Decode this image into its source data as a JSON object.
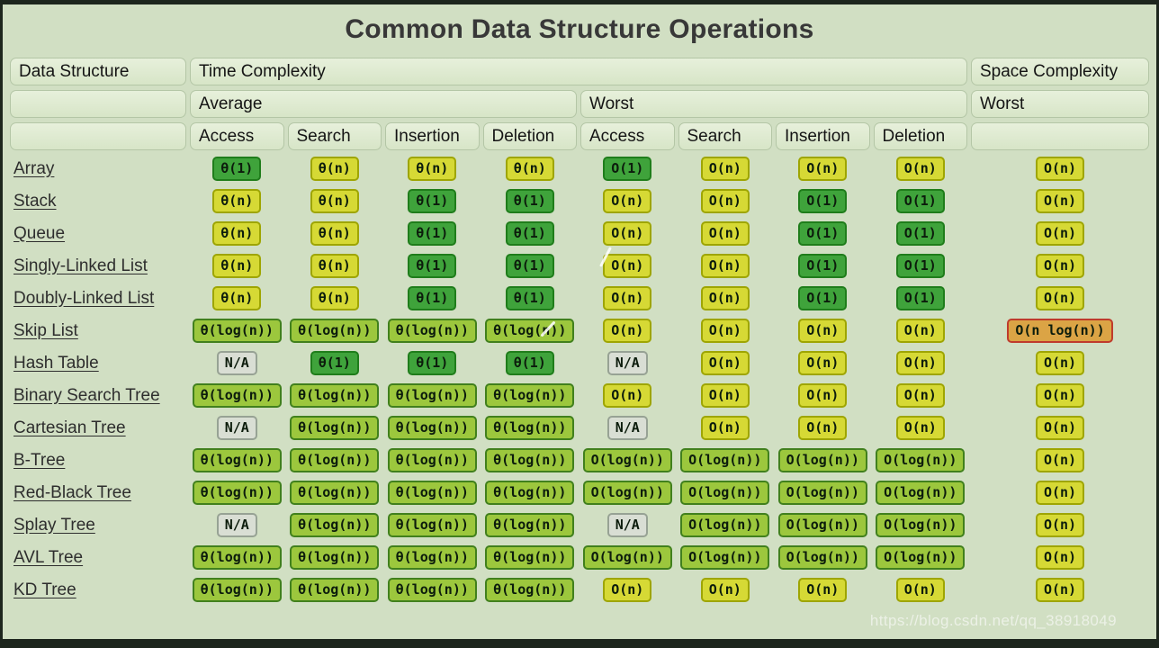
{
  "title": "Common Data Structure Operations",
  "watermark": "https://blog.csdn.net/qq_38918049",
  "header": {
    "data_structure": "Data Structure",
    "time_complexity": "Time Complexity",
    "space_complexity": "Space Complexity",
    "average": "Average",
    "worst_time": "Worst",
    "worst_space": "Worst",
    "operations": [
      "Access",
      "Search",
      "Insertion",
      "Deletion"
    ]
  },
  "colors": {
    "green": {
      "bg": "#3fa33b",
      "border": "#1f7d1b"
    },
    "yellow": {
      "bg": "#d6d935",
      "border": "#9ea502"
    },
    "yellowgreen": {
      "bg": "#9cc73d",
      "border": "#41801d"
    },
    "orange": {
      "bg": "#dba445",
      "border": "#bf3b2c"
    },
    "gray": {
      "bg": "#d9ded4",
      "border": "#97a294"
    }
  },
  "rows": [
    {
      "name": "Array",
      "cells": [
        {
          "text": "θ(1)",
          "color": "green"
        },
        {
          "text": "θ(n)",
          "color": "yellow"
        },
        {
          "text": "θ(n)",
          "color": "yellow"
        },
        {
          "text": "θ(n)",
          "color": "yellow"
        },
        {
          "text": "O(1)",
          "color": "green"
        },
        {
          "text": "O(n)",
          "color": "yellow"
        },
        {
          "text": "O(n)",
          "color": "yellow"
        },
        {
          "text": "O(n)",
          "color": "yellow"
        },
        {
          "text": "O(n)",
          "color": "yellow"
        }
      ]
    },
    {
      "name": "Stack",
      "cells": [
        {
          "text": "θ(n)",
          "color": "yellow"
        },
        {
          "text": "θ(n)",
          "color": "yellow"
        },
        {
          "text": "θ(1)",
          "color": "green"
        },
        {
          "text": "θ(1)",
          "color": "green"
        },
        {
          "text": "O(n)",
          "color": "yellow"
        },
        {
          "text": "O(n)",
          "color": "yellow"
        },
        {
          "text": "O(1)",
          "color": "green"
        },
        {
          "text": "O(1)",
          "color": "green"
        },
        {
          "text": "O(n)",
          "color": "yellow"
        }
      ]
    },
    {
      "name": "Queue",
      "cells": [
        {
          "text": "θ(n)",
          "color": "yellow"
        },
        {
          "text": "θ(n)",
          "color": "yellow"
        },
        {
          "text": "θ(1)",
          "color": "green"
        },
        {
          "text": "θ(1)",
          "color": "green"
        },
        {
          "text": "O(n)",
          "color": "yellow"
        },
        {
          "text": "O(n)",
          "color": "yellow"
        },
        {
          "text": "O(1)",
          "color": "green"
        },
        {
          "text": "O(1)",
          "color": "green"
        },
        {
          "text": "O(n)",
          "color": "yellow"
        }
      ]
    },
    {
      "name": "Singly-Linked List",
      "cells": [
        {
          "text": "θ(n)",
          "color": "yellow"
        },
        {
          "text": "θ(n)",
          "color": "yellow"
        },
        {
          "text": "θ(1)",
          "color": "green"
        },
        {
          "text": "θ(1)",
          "color": "green"
        },
        {
          "text": "O(n)",
          "color": "yellow"
        },
        {
          "text": "O(n)",
          "color": "yellow"
        },
        {
          "text": "O(1)",
          "color": "green"
        },
        {
          "text": "O(1)",
          "color": "green"
        },
        {
          "text": "O(n)",
          "color": "yellow"
        }
      ]
    },
    {
      "name": "Doubly-Linked List",
      "cells": [
        {
          "text": "θ(n)",
          "color": "yellow"
        },
        {
          "text": "θ(n)",
          "color": "yellow"
        },
        {
          "text": "θ(1)",
          "color": "green"
        },
        {
          "text": "θ(1)",
          "color": "green"
        },
        {
          "text": "O(n)",
          "color": "yellow"
        },
        {
          "text": "O(n)",
          "color": "yellow"
        },
        {
          "text": "O(1)",
          "color": "green"
        },
        {
          "text": "O(1)",
          "color": "green"
        },
        {
          "text": "O(n)",
          "color": "yellow"
        }
      ]
    },
    {
      "name": "Skip List",
      "cells": [
        {
          "text": "θ(log(n))",
          "color": "yellowgreen"
        },
        {
          "text": "θ(log(n))",
          "color": "yellowgreen"
        },
        {
          "text": "θ(log(n))",
          "color": "yellowgreen"
        },
        {
          "text": "θ(log(n))",
          "color": "yellowgreen"
        },
        {
          "text": "O(n)",
          "color": "yellow"
        },
        {
          "text": "O(n)",
          "color": "yellow"
        },
        {
          "text": "O(n)",
          "color": "yellow"
        },
        {
          "text": "O(n)",
          "color": "yellow"
        },
        {
          "text": "O(n log(n))",
          "color": "orange"
        }
      ]
    },
    {
      "name": "Hash Table",
      "cells": [
        {
          "text": "N/A",
          "color": "gray"
        },
        {
          "text": "θ(1)",
          "color": "green"
        },
        {
          "text": "θ(1)",
          "color": "green"
        },
        {
          "text": "θ(1)",
          "color": "green"
        },
        {
          "text": "N/A",
          "color": "gray"
        },
        {
          "text": "O(n)",
          "color": "yellow"
        },
        {
          "text": "O(n)",
          "color": "yellow"
        },
        {
          "text": "O(n)",
          "color": "yellow"
        },
        {
          "text": "O(n)",
          "color": "yellow"
        }
      ]
    },
    {
      "name": "Binary Search Tree",
      "cells": [
        {
          "text": "θ(log(n))",
          "color": "yellowgreen"
        },
        {
          "text": "θ(log(n))",
          "color": "yellowgreen"
        },
        {
          "text": "θ(log(n))",
          "color": "yellowgreen"
        },
        {
          "text": "θ(log(n))",
          "color": "yellowgreen"
        },
        {
          "text": "O(n)",
          "color": "yellow"
        },
        {
          "text": "O(n)",
          "color": "yellow"
        },
        {
          "text": "O(n)",
          "color": "yellow"
        },
        {
          "text": "O(n)",
          "color": "yellow"
        },
        {
          "text": "O(n)",
          "color": "yellow"
        }
      ]
    },
    {
      "name": "Cartesian Tree",
      "cells": [
        {
          "text": "N/A",
          "color": "gray"
        },
        {
          "text": "θ(log(n))",
          "color": "yellowgreen"
        },
        {
          "text": "θ(log(n))",
          "color": "yellowgreen"
        },
        {
          "text": "θ(log(n))",
          "color": "yellowgreen"
        },
        {
          "text": "N/A",
          "color": "gray"
        },
        {
          "text": "O(n)",
          "color": "yellow"
        },
        {
          "text": "O(n)",
          "color": "yellow"
        },
        {
          "text": "O(n)",
          "color": "yellow"
        },
        {
          "text": "O(n)",
          "color": "yellow"
        }
      ]
    },
    {
      "name": "B-Tree",
      "cells": [
        {
          "text": "θ(log(n))",
          "color": "yellowgreen"
        },
        {
          "text": "θ(log(n))",
          "color": "yellowgreen"
        },
        {
          "text": "θ(log(n))",
          "color": "yellowgreen"
        },
        {
          "text": "θ(log(n))",
          "color": "yellowgreen"
        },
        {
          "text": "O(log(n))",
          "color": "yellowgreen"
        },
        {
          "text": "O(log(n))",
          "color": "yellowgreen"
        },
        {
          "text": "O(log(n))",
          "color": "yellowgreen"
        },
        {
          "text": "O(log(n))",
          "color": "yellowgreen"
        },
        {
          "text": "O(n)",
          "color": "yellow"
        }
      ]
    },
    {
      "name": "Red-Black Tree",
      "cells": [
        {
          "text": "θ(log(n))",
          "color": "yellowgreen"
        },
        {
          "text": "θ(log(n))",
          "color": "yellowgreen"
        },
        {
          "text": "θ(log(n))",
          "color": "yellowgreen"
        },
        {
          "text": "θ(log(n))",
          "color": "yellowgreen"
        },
        {
          "text": "O(log(n))",
          "color": "yellowgreen"
        },
        {
          "text": "O(log(n))",
          "color": "yellowgreen"
        },
        {
          "text": "O(log(n))",
          "color": "yellowgreen"
        },
        {
          "text": "O(log(n))",
          "color": "yellowgreen"
        },
        {
          "text": "O(n)",
          "color": "yellow"
        }
      ]
    },
    {
      "name": "Splay Tree",
      "cells": [
        {
          "text": "N/A",
          "color": "gray"
        },
        {
          "text": "θ(log(n))",
          "color": "yellowgreen"
        },
        {
          "text": "θ(log(n))",
          "color": "yellowgreen"
        },
        {
          "text": "θ(log(n))",
          "color": "yellowgreen"
        },
        {
          "text": "N/A",
          "color": "gray"
        },
        {
          "text": "O(log(n))",
          "color": "yellowgreen"
        },
        {
          "text": "O(log(n))",
          "color": "yellowgreen"
        },
        {
          "text": "O(log(n))",
          "color": "yellowgreen"
        },
        {
          "text": "O(n)",
          "color": "yellow"
        }
      ]
    },
    {
      "name": "AVL Tree",
      "cells": [
        {
          "text": "θ(log(n))",
          "color": "yellowgreen"
        },
        {
          "text": "θ(log(n))",
          "color": "yellowgreen"
        },
        {
          "text": "θ(log(n))",
          "color": "yellowgreen"
        },
        {
          "text": "θ(log(n))",
          "color": "yellowgreen"
        },
        {
          "text": "O(log(n))",
          "color": "yellowgreen"
        },
        {
          "text": "O(log(n))",
          "color": "yellowgreen"
        },
        {
          "text": "O(log(n))",
          "color": "yellowgreen"
        },
        {
          "text": "O(log(n))",
          "color": "yellowgreen"
        },
        {
          "text": "O(n)",
          "color": "yellow"
        }
      ]
    },
    {
      "name": "KD Tree",
      "cells": [
        {
          "text": "θ(log(n))",
          "color": "yellowgreen"
        },
        {
          "text": "θ(log(n))",
          "color": "yellowgreen"
        },
        {
          "text": "θ(log(n))",
          "color": "yellowgreen"
        },
        {
          "text": "θ(log(n))",
          "color": "yellowgreen"
        },
        {
          "text": "O(n)",
          "color": "yellow"
        },
        {
          "text": "O(n)",
          "color": "yellow"
        },
        {
          "text": "O(n)",
          "color": "yellow"
        },
        {
          "text": "O(n)",
          "color": "yellow"
        },
        {
          "text": "O(n)",
          "color": "yellow"
        }
      ]
    }
  ]
}
